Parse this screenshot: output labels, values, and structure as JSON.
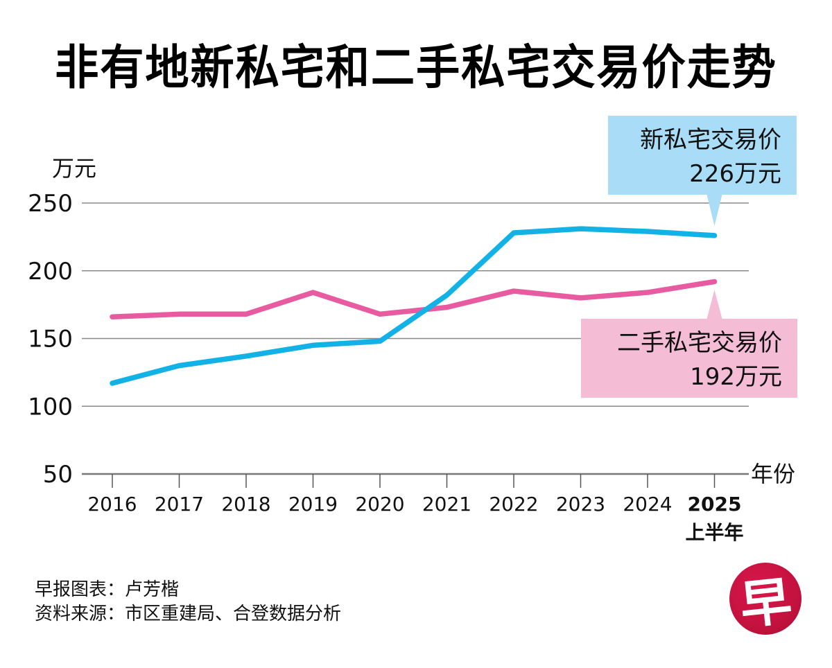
{
  "header": {
    "title": "非有地新私宅和二手私宅交易价走势"
  },
  "chart_data": {
    "type": "line",
    "title": "非有地新私宅和二手私宅交易价走势",
    "ylabel": "万元",
    "xlabel": "年份",
    "ylim": [
      50,
      250
    ],
    "yticks": [
      250,
      200,
      150,
      100,
      50
    ],
    "grid": true,
    "categories": [
      "2016",
      "2017",
      "2018",
      "2019",
      "2020",
      "2021",
      "2022",
      "2023",
      "2024",
      "2025"
    ],
    "category_sublabels": {
      "2025": "上半年"
    },
    "highlight_category": "2025",
    "series": [
      {
        "name": "新私宅交易价",
        "color": "#12b2e6",
        "values": [
          117,
          130,
          137,
          145,
          148,
          182,
          228,
          231,
          229,
          226
        ]
      },
      {
        "name": "二手私宅交易价",
        "color": "#e85ba0",
        "values": [
          166,
          168,
          168,
          184,
          168,
          173,
          185,
          180,
          184,
          192
        ]
      }
    ],
    "annotations": [
      {
        "series": "新私宅交易价",
        "line1": "新私宅交易价",
        "line2": "226万元",
        "bg": "#a9dcf6",
        "placement": "top-right"
      },
      {
        "series": "二手私宅交易价",
        "line1": "二手私宅交易价",
        "line2": "192万元",
        "bg": "#f5bcd6",
        "placement": "right"
      }
    ]
  },
  "footer": {
    "credit": "早报图表：卢芳楷",
    "source": "资料来源：市区重建局、合登数据分析"
  },
  "logo": {
    "glyph": "早",
    "color": "#c4123f"
  }
}
